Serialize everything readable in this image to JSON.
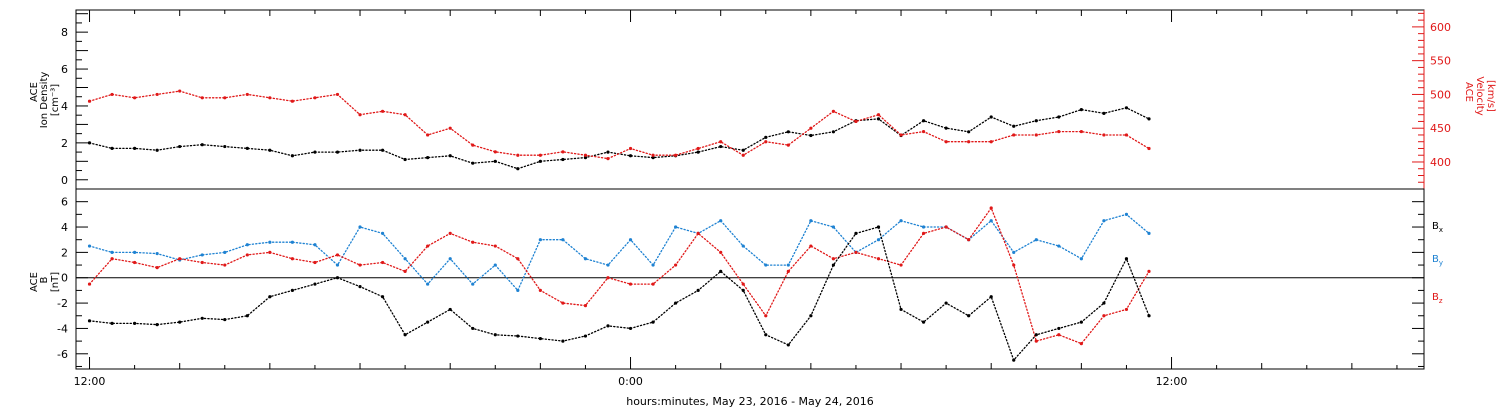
{
  "chart_data": [
    {
      "type": "scatter",
      "panel": "top",
      "left_axis": {
        "label_line1": "ACE",
        "label_line2": "Ion Density",
        "label_line3": "[cm⁻³]",
        "ylim": [
          -0.5,
          9.2
        ],
        "ticks": [
          "0",
          "2",
          "4",
          "6",
          "8"
        ],
        "color": "#000000"
      },
      "right_axis": {
        "label_line1": "ACE",
        "label_line2": "Velocity",
        "label_line3": "[km/s]",
        "ylim": [
          360,
          625
        ],
        "ticks": [
          "400",
          "450",
          "500",
          "550",
          "600"
        ],
        "color": "#e01818"
      },
      "series": [
        {
          "color": "#000000",
          "axis": "left",
          "x_hours": [
            0,
            0.5,
            1,
            1.5,
            2,
            2.5,
            3,
            3.5,
            4,
            4.5,
            5,
            5.5,
            6,
            6.5,
            7,
            7.5,
            8,
            8.5,
            9,
            9.5,
            10,
            10.5,
            11,
            11.5,
            12,
            12.5,
            13,
            13.5,
            14,
            14.5,
            15,
            15.5,
            16,
            16.5,
            17,
            17.5,
            18,
            18.5,
            19,
            19.5,
            20,
            20.5,
            21,
            21.5,
            22,
            22.5,
            23,
            23.5
          ],
          "values": [
            2.0,
            1.7,
            1.7,
            1.6,
            1.8,
            1.9,
            1.8,
            1.7,
            1.6,
            1.3,
            1.5,
            1.5,
            1.6,
            1.6,
            1.1,
            1.2,
            1.3,
            0.9,
            1.0,
            0.6,
            1.0,
            1.1,
            1.2,
            1.5,
            1.3,
            1.2,
            1.3,
            1.5,
            1.8,
            1.6,
            2.3,
            2.6,
            2.4,
            2.6,
            3.2,
            3.3,
            2.4,
            3.2,
            2.8,
            2.6,
            3.4,
            2.9,
            3.2,
            3.4,
            3.8,
            3.6,
            3.9,
            3.3
          ]
        },
        {
          "color": "#e01818",
          "axis": "right",
          "x_hours": [
            0,
            0.5,
            1,
            1.5,
            2,
            2.5,
            3,
            3.5,
            4,
            4.5,
            5,
            5.5,
            6,
            6.5,
            7,
            7.5,
            8,
            8.5,
            9,
            9.5,
            10,
            10.5,
            11,
            11.5,
            12,
            12.5,
            13,
            13.5,
            14,
            14.5,
            15,
            15.5,
            16,
            16.5,
            17,
            17.5,
            18,
            18.5,
            19,
            19.5,
            20,
            20.5,
            21,
            21.5,
            22,
            22.5,
            23,
            23.5
          ],
          "values": [
            490,
            500,
            495,
            500,
            505,
            495,
            495,
            500,
            495,
            490,
            495,
            500,
            470,
            475,
            470,
            440,
            450,
            425,
            415,
            410,
            410,
            415,
            410,
            405,
            420,
            410,
            410,
            420,
            430,
            410,
            430,
            425,
            450,
            475,
            460,
            470,
            440,
            445,
            430,
            430,
            430,
            440,
            440,
            445,
            445,
            440,
            440,
            420
          ]
        }
      ]
    },
    {
      "type": "line",
      "panel": "bottom",
      "left_axis": {
        "label_line1": "ACE",
        "label_line2": "B",
        "label_line3": "[nT]",
        "ylim": [
          -7.2,
          7.0
        ],
        "ticks": [
          "-6",
          "-4",
          "-2",
          "0",
          "2",
          "4",
          "6"
        ],
        "color": "#000000"
      },
      "series": [
        {
          "name": "Bx",
          "label_main": "B",
          "label_sub": "x",
          "color": "#000000",
          "x_hours": [
            0,
            0.5,
            1,
            1.5,
            2,
            2.5,
            3,
            3.5,
            4,
            4.5,
            5,
            5.5,
            6,
            6.5,
            7,
            7.5,
            8,
            8.5,
            9,
            9.5,
            10,
            10.5,
            11,
            11.5,
            12,
            12.5,
            13,
            13.5,
            14,
            14.5,
            15,
            15.5,
            16,
            16.5,
            17,
            17.5,
            18,
            18.5,
            19,
            19.5,
            20,
            20.5,
            21,
            21.5,
            22,
            22.5,
            23,
            23.5
          ],
          "values": [
            -3.4,
            -3.6,
            -3.6,
            -3.7,
            -3.5,
            -3.2,
            -3.3,
            -3.0,
            -1.5,
            -1.0,
            -0.5,
            0.0,
            -0.7,
            -1.5,
            -4.5,
            -3.5,
            -2.5,
            -4.0,
            -4.5,
            -4.6,
            -4.8,
            -5.0,
            -4.6,
            -3.8,
            -4.0,
            -3.5,
            -2.0,
            -1.0,
            0.5,
            -1.0,
            -4.5,
            -5.3,
            -3.0,
            1.0,
            3.5,
            4.0,
            -2.5,
            -3.5,
            -2.0,
            -3.0,
            -1.5,
            -6.5,
            -4.5,
            -4.0,
            -3.5,
            -2.0,
            1.5,
            -3.0
          ]
        },
        {
          "name": "By",
          "label_main": "B",
          "label_sub": "y",
          "color": "#1e82d2",
          "x_hours": [
            0,
            0.5,
            1,
            1.5,
            2,
            2.5,
            3,
            3.5,
            4,
            4.5,
            5,
            5.5,
            6,
            6.5,
            7,
            7.5,
            8,
            8.5,
            9,
            9.5,
            10,
            10.5,
            11,
            11.5,
            12,
            12.5,
            13,
            13.5,
            14,
            14.5,
            15,
            15.5,
            16,
            16.5,
            17,
            17.5,
            18,
            18.5,
            19,
            19.5,
            20,
            20.5,
            21,
            21.5,
            22,
            22.5,
            23,
            23.5
          ],
          "values": [
            2.5,
            2.0,
            2.0,
            1.9,
            1.4,
            1.8,
            2.0,
            2.6,
            2.8,
            2.8,
            2.6,
            1.0,
            4.0,
            3.5,
            1.5,
            -0.5,
            1.5,
            -0.5,
            1.0,
            -1.0,
            3.0,
            3.0,
            1.5,
            1.0,
            3.0,
            1.0,
            4.0,
            3.5,
            4.5,
            2.5,
            1.0,
            1.0,
            4.5,
            4.0,
            2.0,
            3.0,
            4.5,
            4.0,
            4.0,
            3.0,
            4.5,
            2.0,
            3.0,
            2.5,
            1.5,
            4.5,
            5.0,
            3.5
          ]
        },
        {
          "name": "Bz",
          "label_main": "B",
          "label_sub": "z",
          "color": "#e01818",
          "x_hours": [
            0,
            0.5,
            1,
            1.5,
            2,
            2.5,
            3,
            3.5,
            4,
            4.5,
            5,
            5.5,
            6,
            6.5,
            7,
            7.5,
            8,
            8.5,
            9,
            9.5,
            10,
            10.5,
            11,
            11.5,
            12,
            12.5,
            13,
            13.5,
            14,
            14.5,
            15,
            15.5,
            16,
            16.5,
            17,
            17.5,
            18,
            18.5,
            19,
            19.5,
            20,
            20.5,
            21,
            21.5,
            22,
            22.5,
            23,
            23.5
          ],
          "values": [
            -0.5,
            1.5,
            1.2,
            0.8,
            1.5,
            1.2,
            1.0,
            1.8,
            2.0,
            1.5,
            1.2,
            1.8,
            1.0,
            1.2,
            0.5,
            2.5,
            3.5,
            2.8,
            2.5,
            1.5,
            -1.0,
            -2.0,
            -2.2,
            0.0,
            -0.5,
            -0.5,
            1.0,
            3.5,
            2.0,
            -0.5,
            -3.0,
            0.5,
            2.5,
            1.5,
            2.0,
            1.5,
            1.0,
            3.5,
            4.0,
            3.0,
            5.5,
            1.0,
            -5.0,
            -4.5,
            -5.2,
            -3.0,
            -2.5,
            0.5
          ]
        }
      ]
    }
  ],
  "x_axis": {
    "tick_labels": [
      "12:00",
      "0:00",
      "12:00"
    ],
    "tick_hours": [
      0,
      12,
      24
    ],
    "range_hours": [
      -0.3,
      29.6
    ],
    "title": "hours:minutes, May 23, 2016 - May 24, 2016"
  },
  "colors": {
    "black": "#000000",
    "red": "#e01818",
    "blue": "#1e82d2"
  }
}
